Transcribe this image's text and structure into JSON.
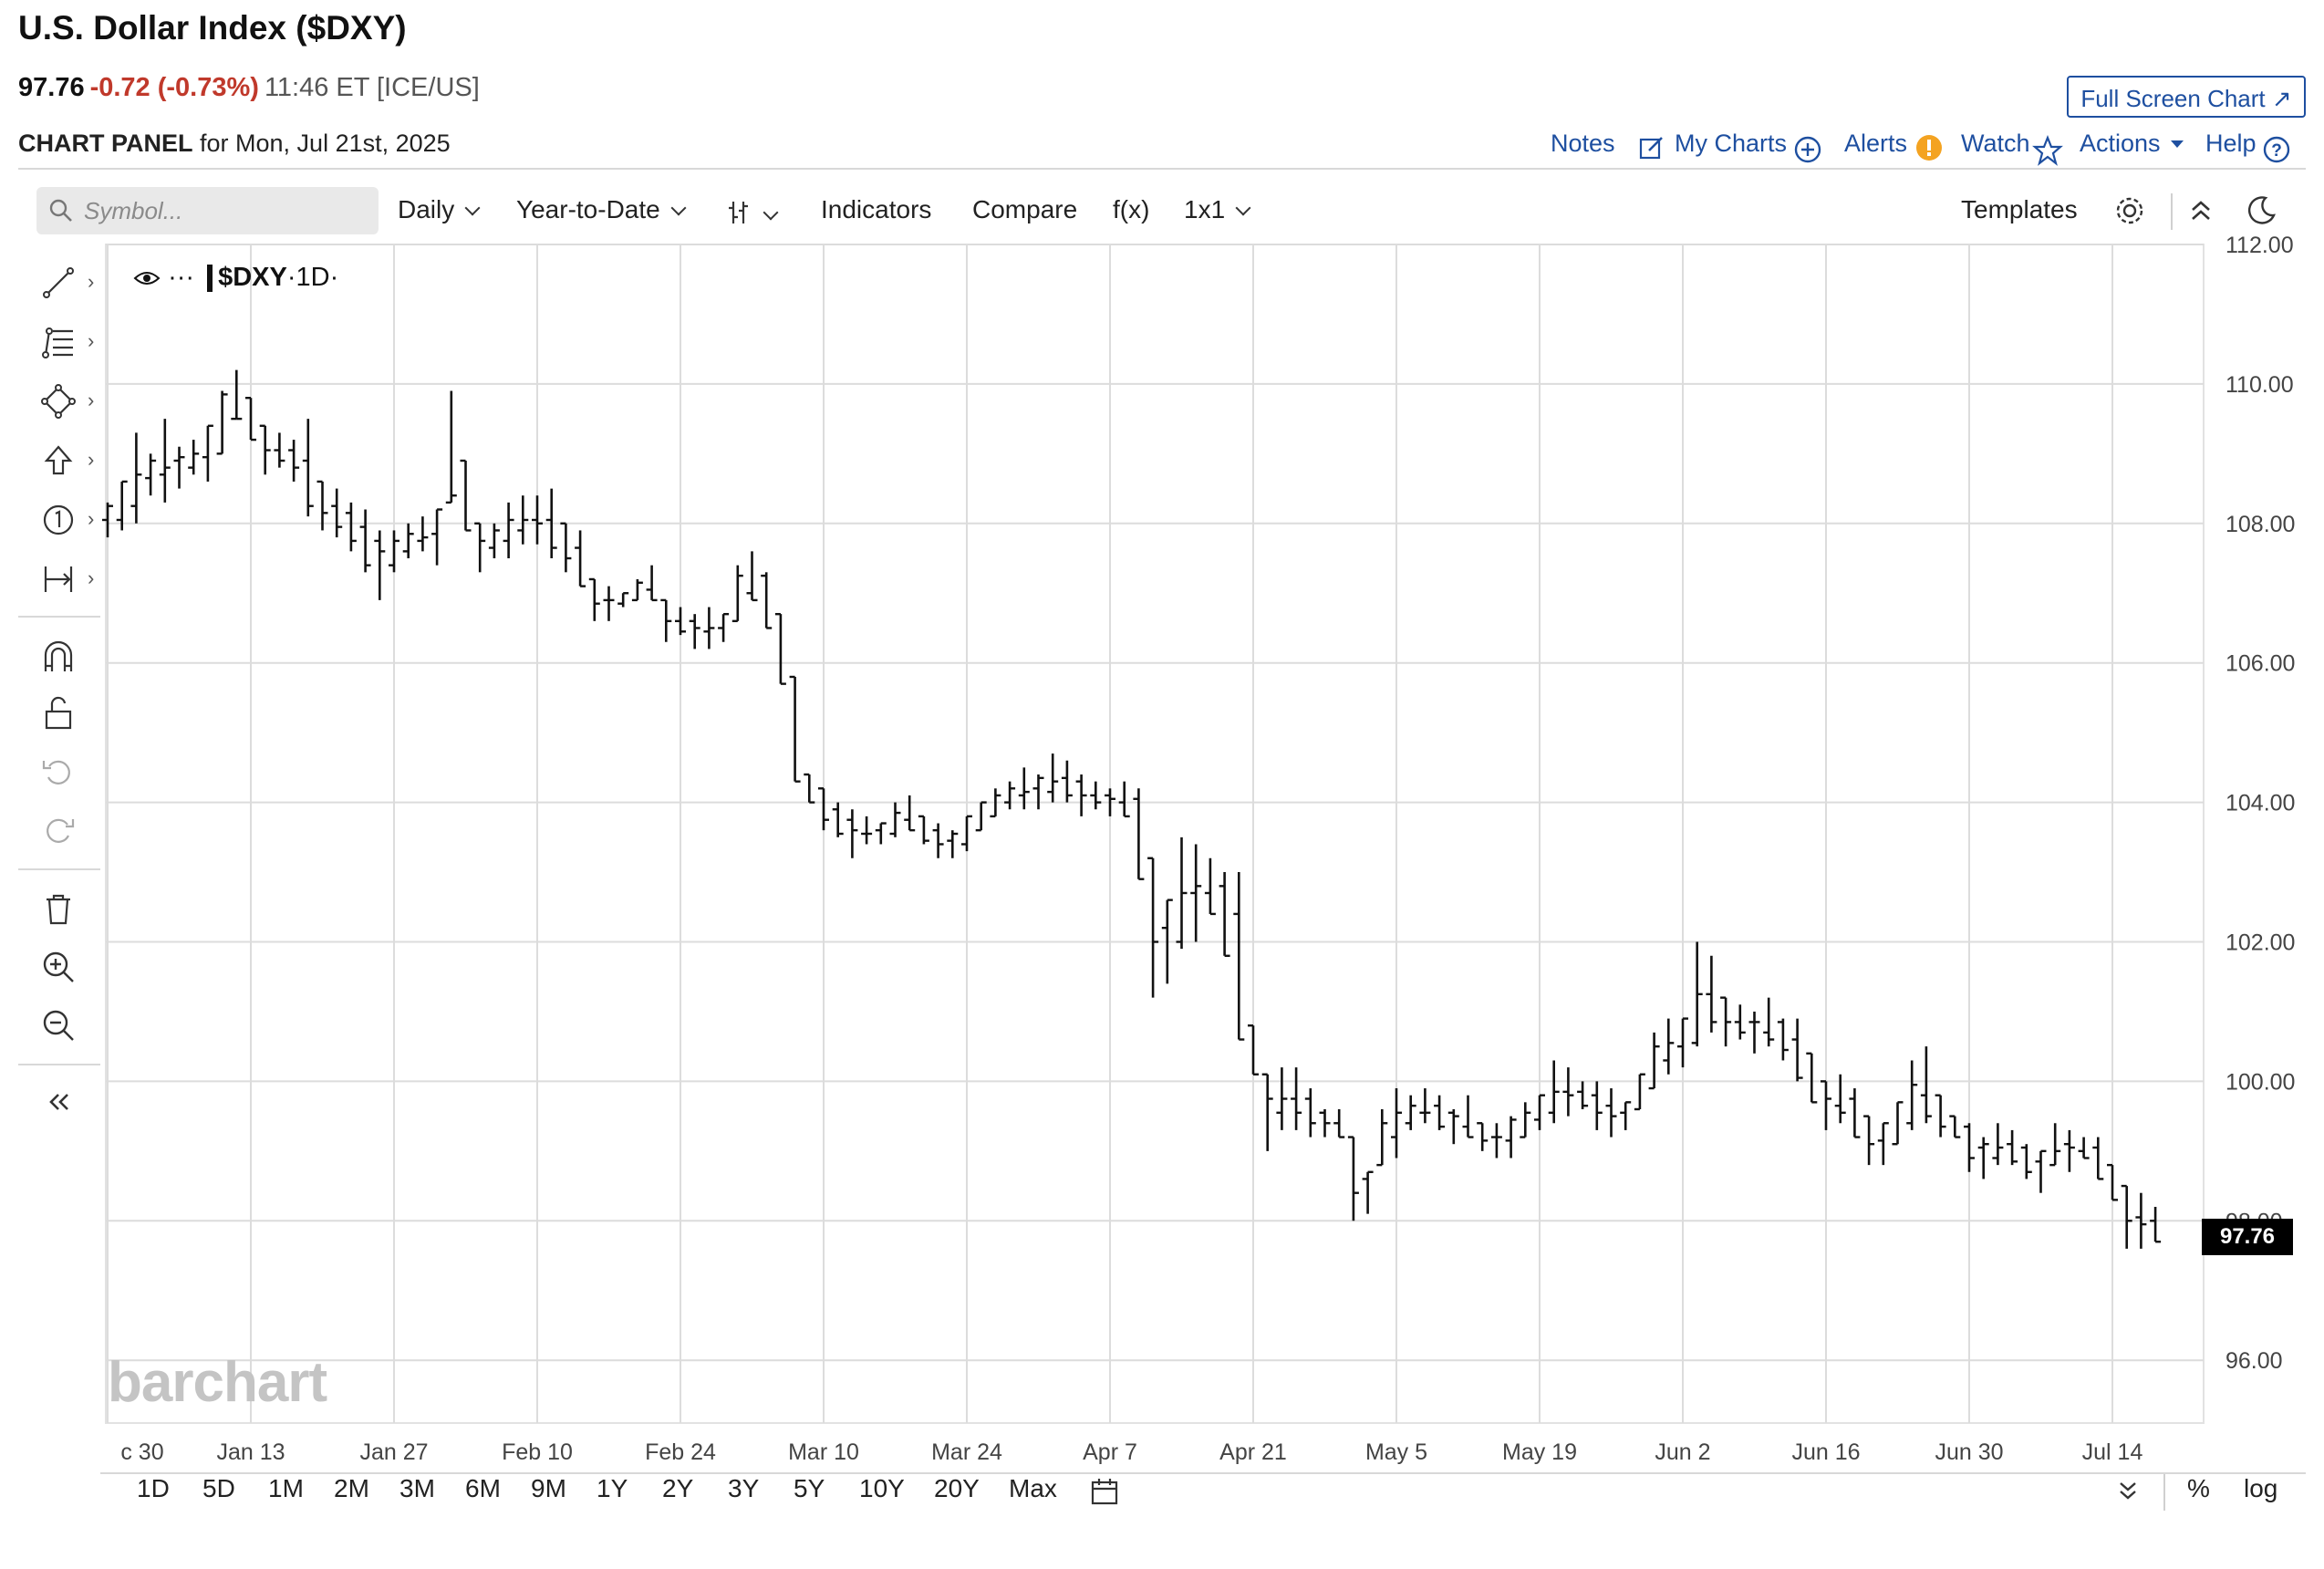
{
  "header": {
    "title": "U.S. Dollar Index ($DXY)",
    "last": "97.76",
    "change": "-0.72 (-0.73%)",
    "time": "11:46 ET [ICE/US]",
    "panel_label": "CHART PANEL",
    "panel_date": "for Mon, Jul 21st, 2025",
    "full_screen_label": "Full Screen Chart ↗",
    "links": {
      "notes": "Notes",
      "my_charts": "My Charts",
      "alerts": "Alerts",
      "watch": "Watch",
      "actions": "Actions",
      "help": "Help"
    }
  },
  "toolbar": {
    "search_placeholder": "Symbol...",
    "interval": "Daily",
    "range": "Year-to-Date",
    "indicators": "Indicators",
    "compare": "Compare",
    "fx": "f(x)",
    "layout": "1x1",
    "templates": "Templates"
  },
  "legend": {
    "symbol": "$DXY",
    "interval": "·1D·"
  },
  "watermark": "barchart",
  "price_tag": "97.76",
  "bottom_bar": {
    "ranges": [
      "1D",
      "5D",
      "1M",
      "2M",
      "3M",
      "6M",
      "9M",
      "1Y",
      "2Y",
      "3Y",
      "5Y",
      "10Y",
      "20Y",
      "Max"
    ],
    "percent": "%",
    "log": "log"
  },
  "chart_data": {
    "type": "ohlc-bar",
    "title": "U.S. Dollar Index ($DXY)",
    "ylim": [
      95.1,
      112.0
    ],
    "y_ticks": [
      96,
      98,
      100,
      102,
      104,
      106,
      108,
      110,
      112
    ],
    "y_tick_labels": [
      "96.00",
      "98.00",
      "100.00",
      "102.00",
      "104.00",
      "106.00",
      "108.00",
      "110.00",
      "112.00"
    ],
    "x_tick_labels": [
      "c 30",
      "Jan 13",
      "Jan 27",
      "Feb 10",
      "Feb 24",
      "Mar 10",
      "Mar 24",
      "Apr 7",
      "Apr 21",
      "May 5",
      "May 19",
      "Jun 2",
      "Jun 16",
      "Jun 30",
      "Jul 14"
    ],
    "grid": true,
    "bars": [
      {
        "date": "2024-12-30",
        "h": 108.3,
        "l": 107.8
      },
      {
        "date": "2024-12-31",
        "h": 108.6,
        "l": 107.9
      },
      {
        "date": "2025-01-02",
        "h": 109.3,
        "l": 108.0
      },
      {
        "date": "2025-01-03",
        "h": 109.0,
        "l": 108.4
      },
      {
        "date": "2025-01-06",
        "h": 109.5,
        "l": 108.3
      },
      {
        "date": "2025-01-07",
        "h": 109.1,
        "l": 108.5
      },
      {
        "date": "2025-01-08",
        "h": 109.2,
        "l": 108.7
      },
      {
        "date": "2025-01-09",
        "h": 109.4,
        "l": 108.6
      },
      {
        "date": "2025-01-10",
        "h": 109.9,
        "l": 109.0
      },
      {
        "date": "2025-01-13",
        "h": 110.2,
        "l": 109.5
      },
      {
        "date": "2025-01-14",
        "h": 109.8,
        "l": 109.2
      },
      {
        "date": "2025-01-15",
        "h": 109.4,
        "l": 108.7
      },
      {
        "date": "2025-01-16",
        "h": 109.3,
        "l": 108.8
      },
      {
        "date": "2025-01-17",
        "h": 109.2,
        "l": 108.6
      },
      {
        "date": "2025-01-20",
        "h": 109.5,
        "l": 108.1
      },
      {
        "date": "2025-01-21",
        "h": 108.6,
        "l": 107.9
      },
      {
        "date": "2025-01-22",
        "h": 108.5,
        "l": 107.8
      },
      {
        "date": "2025-01-23",
        "h": 108.3,
        "l": 107.6
      },
      {
        "date": "2025-01-24",
        "h": 108.2,
        "l": 107.3
      },
      {
        "date": "2025-01-27",
        "h": 107.9,
        "l": 106.9
      },
      {
        "date": "2025-01-28",
        "h": 107.9,
        "l": 107.3
      },
      {
        "date": "2025-01-29",
        "h": 108.0,
        "l": 107.5
      },
      {
        "date": "2025-01-30",
        "h": 108.1,
        "l": 107.6
      },
      {
        "date": "2025-01-31",
        "h": 108.2,
        "l": 107.4
      },
      {
        "date": "2025-02-03",
        "h": 109.9,
        "l": 108.3
      },
      {
        "date": "2025-02-04",
        "h": 108.9,
        "l": 107.9
      },
      {
        "date": "2025-02-05",
        "h": 108.0,
        "l": 107.3
      },
      {
        "date": "2025-02-06",
        "h": 108.0,
        "l": 107.5
      },
      {
        "date": "2025-02-07",
        "h": 108.3,
        "l": 107.5
      },
      {
        "date": "2025-02-10",
        "h": 108.4,
        "l": 107.7
      },
      {
        "date": "2025-02-11",
        "h": 108.4,
        "l": 107.7
      },
      {
        "date": "2025-02-12",
        "h": 108.5,
        "l": 107.5
      },
      {
        "date": "2025-02-13",
        "h": 108.0,
        "l": 107.3
      },
      {
        "date": "2025-02-14",
        "h": 107.9,
        "l": 107.1
      },
      {
        "date": "2025-02-18",
        "h": 107.2,
        "l": 106.6
      },
      {
        "date": "2025-02-19",
        "h": 107.1,
        "l": 106.6
      },
      {
        "date": "2025-02-20",
        "h": 107.0,
        "l": 106.8
      },
      {
        "date": "2025-02-21",
        "h": 107.2,
        "l": 106.9
      },
      {
        "date": "2025-02-24",
        "h": 107.4,
        "l": 106.9
      },
      {
        "date": "2025-02-25",
        "h": 106.9,
        "l": 106.3
      },
      {
        "date": "2025-02-26",
        "h": 106.8,
        "l": 106.4
      },
      {
        "date": "2025-02-27",
        "h": 106.7,
        "l": 106.2
      },
      {
        "date": "2025-02-28",
        "h": 106.8,
        "l": 106.2
      },
      {
        "date": "2025-03-03",
        "h": 106.7,
        "l": 106.3
      },
      {
        "date": "2025-03-04",
        "h": 107.4,
        "l": 106.6
      },
      {
        "date": "2025-03-05",
        "h": 107.6,
        "l": 106.9
      },
      {
        "date": "2025-03-06",
        "h": 107.3,
        "l": 106.5
      },
      {
        "date": "2025-03-07",
        "h": 106.7,
        "l": 105.7
      },
      {
        "date": "2025-03-10",
        "h": 105.8,
        "l": 104.3
      },
      {
        "date": "2025-03-11",
        "h": 104.4,
        "l": 104.0
      },
      {
        "date": "2025-03-12",
        "h": 104.2,
        "l": 103.6
      },
      {
        "date": "2025-03-13",
        "h": 104.0,
        "l": 103.5
      },
      {
        "date": "2025-03-14",
        "h": 103.9,
        "l": 103.2
      },
      {
        "date": "2025-03-17",
        "h": 103.8,
        "l": 103.4
      },
      {
        "date": "2025-03-18",
        "h": 103.7,
        "l": 103.4
      },
      {
        "date": "2025-03-19",
        "h": 104.0,
        "l": 103.5
      },
      {
        "date": "2025-03-20",
        "h": 104.1,
        "l": 103.6
      },
      {
        "date": "2025-03-21",
        "h": 103.8,
        "l": 103.4
      },
      {
        "date": "2025-03-24",
        "h": 103.7,
        "l": 103.2
      },
      {
        "date": "2025-03-25",
        "h": 103.6,
        "l": 103.2
      },
      {
        "date": "2025-03-26",
        "h": 103.8,
        "l": 103.3
      },
      {
        "date": "2025-03-27",
        "h": 104.0,
        "l": 103.6
      },
      {
        "date": "2025-03-28",
        "h": 104.2,
        "l": 103.8
      },
      {
        "date": "2025-03-31",
        "h": 104.3,
        "l": 103.9
      },
      {
        "date": "2025-04-01",
        "h": 104.5,
        "l": 103.9
      },
      {
        "date": "2025-04-02",
        "h": 104.4,
        "l": 103.9
      },
      {
        "date": "2025-04-03",
        "h": 104.7,
        "l": 104.0
      },
      {
        "date": "2025-04-04",
        "h": 104.6,
        "l": 104.0
      },
      {
        "date": "2025-04-07",
        "h": 104.4,
        "l": 103.8
      },
      {
        "date": "2025-04-08",
        "h": 104.3,
        "l": 103.9
      },
      {
        "date": "2025-04-09",
        "h": 104.2,
        "l": 103.8
      },
      {
        "date": "2025-04-10",
        "h": 104.3,
        "l": 103.8
      },
      {
        "date": "2025-04-11",
        "h": 104.2,
        "l": 102.9
      },
      {
        "date": "2025-04-14",
        "h": 103.2,
        "l": 101.2
      },
      {
        "date": "2025-04-15",
        "h": 102.6,
        "l": 101.4
      },
      {
        "date": "2025-04-16",
        "h": 103.5,
        "l": 101.9
      },
      {
        "date": "2025-04-17",
        "h": 103.4,
        "l": 102.0
      },
      {
        "date": "2025-04-18",
        "h": 103.2,
        "l": 102.4
      },
      {
        "date": "2025-04-21",
        "h": 103.0,
        "l": 101.8
      },
      {
        "date": "2025-04-22",
        "h": 103.0,
        "l": 100.6
      },
      {
        "date": "2025-04-23",
        "h": 100.8,
        "l": 100.1
      },
      {
        "date": "2025-04-24",
        "h": 100.1,
        "l": 99.0
      },
      {
        "date": "2025-04-25",
        "h": 100.2,
        "l": 99.3
      },
      {
        "date": "2025-04-28",
        "h": 100.2,
        "l": 99.3
      },
      {
        "date": "2025-04-29",
        "h": 99.9,
        "l": 99.2
      },
      {
        "date": "2025-04-30",
        "h": 99.6,
        "l": 99.2
      },
      {
        "date": "2025-05-01",
        "h": 99.6,
        "l": 99.2
      },
      {
        "date": "2025-05-02",
        "h": 99.2,
        "l": 98.0
      },
      {
        "date": "2025-05-05",
        "h": 98.7,
        "l": 98.1
      },
      {
        "date": "2025-05-06",
        "h": 99.6,
        "l": 98.8
      },
      {
        "date": "2025-05-07",
        "h": 99.9,
        "l": 98.9
      },
      {
        "date": "2025-05-08",
        "h": 99.8,
        "l": 99.3
      },
      {
        "date": "2025-05-09",
        "h": 99.9,
        "l": 99.4
      },
      {
        "date": "2025-05-12",
        "h": 99.8,
        "l": 99.3
      },
      {
        "date": "2025-05-13",
        "h": 99.6,
        "l": 99.1
      },
      {
        "date": "2025-05-14",
        "h": 99.8,
        "l": 99.2
      },
      {
        "date": "2025-05-15",
        "h": 99.4,
        "l": 99.0
      },
      {
        "date": "2025-05-16",
        "h": 99.4,
        "l": 98.9
      },
      {
        "date": "2025-05-19",
        "h": 99.5,
        "l": 98.9
      },
      {
        "date": "2025-05-20",
        "h": 99.7,
        "l": 99.2
      },
      {
        "date": "2025-05-21",
        "h": 99.8,
        "l": 99.3
      },
      {
        "date": "2025-05-22",
        "h": 100.3,
        "l": 99.4
      },
      {
        "date": "2025-05-23",
        "h": 100.2,
        "l": 99.5
      },
      {
        "date": "2025-05-26",
        "h": 100.0,
        "l": 99.6
      },
      {
        "date": "2025-05-27",
        "h": 100.0,
        "l": 99.3
      },
      {
        "date": "2025-05-28",
        "h": 99.9,
        "l": 99.2
      },
      {
        "date": "2025-05-29",
        "h": 99.7,
        "l": 99.3
      },
      {
        "date": "2025-05-30",
        "h": 100.1,
        "l": 99.6
      },
      {
        "date": "2025-06-02",
        "h": 100.7,
        "l": 99.9
      },
      {
        "date": "2025-06-03",
        "h": 100.9,
        "l": 100.1
      },
      {
        "date": "2025-06-04",
        "h": 100.9,
        "l": 100.2
      },
      {
        "date": "2025-06-05",
        "h": 102.0,
        "l": 100.5
      },
      {
        "date": "2025-06-06",
        "h": 101.8,
        "l": 100.7
      },
      {
        "date": "2025-06-09",
        "h": 101.2,
        "l": 100.5
      },
      {
        "date": "2025-06-10",
        "h": 101.1,
        "l": 100.6
      },
      {
        "date": "2025-06-11",
        "h": 101.0,
        "l": 100.4
      },
      {
        "date": "2025-06-12",
        "h": 101.2,
        "l": 100.5
      },
      {
        "date": "2025-06-13",
        "h": 100.9,
        "l": 100.3
      },
      {
        "date": "2025-06-16",
        "h": 100.9,
        "l": 100.0
      },
      {
        "date": "2025-06-17",
        "h": 100.4,
        "l": 99.7
      },
      {
        "date": "2025-06-18",
        "h": 100.0,
        "l": 99.3
      },
      {
        "date": "2025-06-19",
        "h": 100.1,
        "l": 99.4
      },
      {
        "date": "2025-06-20",
        "h": 99.9,
        "l": 99.2
      },
      {
        "date": "2025-06-23",
        "h": 99.5,
        "l": 98.8
      },
      {
        "date": "2025-06-24",
        "h": 99.4,
        "l": 98.8
      },
      {
        "date": "2025-06-25",
        "h": 99.7,
        "l": 99.1
      },
      {
        "date": "2025-06-26",
        "h": 100.3,
        "l": 99.3
      },
      {
        "date": "2025-06-27",
        "h": 100.5,
        "l": 99.4
      },
      {
        "date": "2025-06-30",
        "h": 99.8,
        "l": 99.2
      },
      {
        "date": "2025-07-01",
        "h": 99.5,
        "l": 99.2
      },
      {
        "date": "2025-07-02",
        "h": 99.4,
        "l": 98.7
      },
      {
        "date": "2025-07-03",
        "h": 99.2,
        "l": 98.6
      },
      {
        "date": "2025-07-04",
        "h": 99.4,
        "l": 98.8
      },
      {
        "date": "2025-07-07",
        "h": 99.3,
        "l": 98.8
      },
      {
        "date": "2025-07-08",
        "h": 99.1,
        "l": 98.6
      },
      {
        "date": "2025-07-09",
        "h": 99.0,
        "l": 98.4
      },
      {
        "date": "2025-07-10",
        "h": 99.4,
        "l": 98.8
      },
      {
        "date": "2025-07-11",
        "h": 99.3,
        "l": 98.7
      },
      {
        "date": "2025-07-14",
        "h": 99.2,
        "l": 98.9
      },
      {
        "date": "2025-07-15",
        "h": 99.2,
        "l": 98.6
      },
      {
        "date": "2025-07-16",
        "h": 98.8,
        "l": 98.3
      },
      {
        "date": "2025-07-17",
        "h": 98.5,
        "l": 97.6
      },
      {
        "date": "2025-07-18",
        "h": 98.4,
        "l": 97.6
      },
      {
        "date": "2025-07-21",
        "h": 98.2,
        "l": 97.7
      }
    ]
  }
}
